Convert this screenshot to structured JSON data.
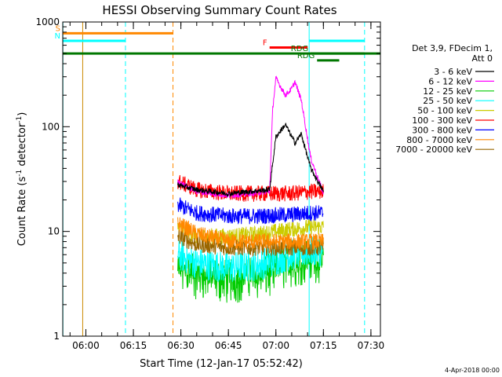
{
  "chart_data": {
    "type": "line",
    "title": "HESSI Observing Summary Count Rates",
    "ylabel_main": "Count Rate (s",
    "ylabel_sup1": "-1",
    "ylabel_mid": " detector",
    "ylabel_sup2": "-1",
    "ylabel_end": ")",
    "xlabel": "Start Time (12-Jan-17 05:52:42)",
    "footer_date": "4-Apr-2018 00:00",
    "y_scale": "log",
    "ylim": [
      1,
      1000
    ],
    "xlim": [
      "05:52:42",
      "07:33:00"
    ],
    "y_ticks": [
      {
        "value": 1,
        "label": "1"
      },
      {
        "value": 10,
        "label": "10"
      },
      {
        "value": 100,
        "label": "100"
      },
      {
        "value": 1000,
        "label": "1000"
      }
    ],
    "x_ticks": [
      {
        "time": "06:00",
        "label": "06:00"
      },
      {
        "time": "06:15",
        "label": "06:15"
      },
      {
        "time": "06:30",
        "label": "06:30"
      },
      {
        "time": "06:45",
        "label": "06:45"
      },
      {
        "time": "07:00",
        "label": "07:00"
      },
      {
        "time": "07:15",
        "label": "07:15"
      },
      {
        "time": "07:30",
        "label": "07:30"
      }
    ],
    "legend": {
      "header_line1": "Det 3,9, FDecim 1,",
      "header_line2": "Att 0",
      "placement": "right"
    },
    "series": [
      {
        "name": "3 - 6 keV",
        "color": "#000000",
        "x": [
          "06:29",
          "06:35",
          "06:45",
          "06:58",
          "07:00",
          "07:03",
          "07:06",
          "07:08",
          "07:11",
          "07:15"
        ],
        "y": [
          28,
          25,
          23,
          25,
          80,
          105,
          70,
          85,
          40,
          24
        ]
      },
      {
        "name": "6 - 12 keV",
        "color": "#ff00ff",
        "x": [
          "06:29",
          "06:35",
          "06:45",
          "06:58",
          "06:59",
          "07:00",
          "07:03",
          "07:05",
          "07:06",
          "07:08",
          "07:11",
          "07:15"
        ],
        "y": [
          30,
          24,
          22,
          24,
          150,
          290,
          200,
          230,
          270,
          180,
          50,
          23
        ]
      },
      {
        "name": "12 - 25 keV",
        "color": "#00cc00",
        "x": [
          "06:29",
          "06:35",
          "06:45",
          "06:55",
          "07:05",
          "07:11",
          "07:15"
        ],
        "y": [
          5,
          4.2,
          3.8,
          4.2,
          5.5,
          6,
          6
        ]
      },
      {
        "name": "25 - 50 keV",
        "color": "#00ffff",
        "x": [
          "06:29",
          "06:35",
          "06:45",
          "06:55",
          "07:05",
          "07:11",
          "07:15"
        ],
        "y": [
          6,
          5,
          4.5,
          4.8,
          6,
          6.5,
          6.5
        ]
      },
      {
        "name": "50 - 100 keV",
        "color": "#cccc00",
        "x": [
          "06:29",
          "06:35",
          "06:45",
          "06:55",
          "07:05",
          "07:11",
          "07:15"
        ],
        "y": [
          11,
          9,
          9,
          9.5,
          10.5,
          11,
          11
        ]
      },
      {
        "name": "100 - 300 keV",
        "color": "#ff0000",
        "x": [
          "06:29",
          "06:35",
          "06:45",
          "06:55",
          "07:05",
          "07:11",
          "07:15"
        ],
        "y": [
          30,
          25,
          23,
          23,
          23,
          24,
          24
        ]
      },
      {
        "name": "300 - 800 keV",
        "color": "#0000ff",
        "x": [
          "06:29",
          "06:35",
          "06:45",
          "06:55",
          "07:05",
          "07:11",
          "07:15"
        ],
        "y": [
          18,
          15,
          14,
          14,
          14.5,
          15,
          15
        ]
      },
      {
        "name": "800 - 7000 keV",
        "color": "#ff8800",
        "x": [
          "06:29",
          "06:35",
          "06:45",
          "06:55",
          "07:05",
          "07:11",
          "07:15"
        ],
        "y": [
          12,
          9.5,
          8,
          8,
          8,
          8,
          8
        ]
      },
      {
        "name": "7000 - 20000 keV",
        "color": "#996600",
        "x": [
          "06:29",
          "06:35",
          "06:45",
          "06:55",
          "07:05",
          "07:11",
          "07:15"
        ],
        "y": [
          9,
          7.5,
          7,
          7,
          7,
          7,
          7
        ]
      }
    ],
    "flag_bars": [
      {
        "label": "S",
        "color": "#ff8800",
        "start": "05:52:42",
        "end": "06:27:30",
        "level": 780
      },
      {
        "label": "N",
        "color": "#00ffff",
        "start": "05:52:42",
        "end": "06:12:30",
        "level": 660
      },
      {
        "label": "",
        "color": "#007700",
        "start": "05:52:42",
        "end": "07:33:00",
        "level": 500
      },
      {
        "label": "F",
        "color": "#ff0000",
        "start": "06:58:00",
        "end": "07:10:00",
        "level": 570
      },
      {
        "label": "",
        "color": "#00ffff",
        "start": "07:10:30",
        "end": "07:28:00",
        "level": 660
      },
      {
        "label": "RDG",
        "color": "#007700",
        "start": "07:13:00",
        "end": "07:20:00",
        "level": 430
      },
      {
        "label": "RDG",
        "color": "#007700",
        "start": "07:11:00",
        "end": "07:28:00",
        "level": 500
      }
    ],
    "vertical_lines": [
      {
        "time": "05:52:45",
        "color": "#00ffff",
        "style": "solid"
      },
      {
        "time": "05:59:00",
        "color": "#cc8800",
        "style": "solid"
      },
      {
        "time": "06:12:30",
        "color": "#00ffff",
        "style": "dashed"
      },
      {
        "time": "06:27:30",
        "color": "#ff8800",
        "style": "dashed"
      },
      {
        "time": "07:10:30",
        "color": "#00ffff",
        "style": "solid"
      },
      {
        "time": "07:28:00",
        "color": "#00ffff",
        "style": "dashed"
      }
    ]
  }
}
